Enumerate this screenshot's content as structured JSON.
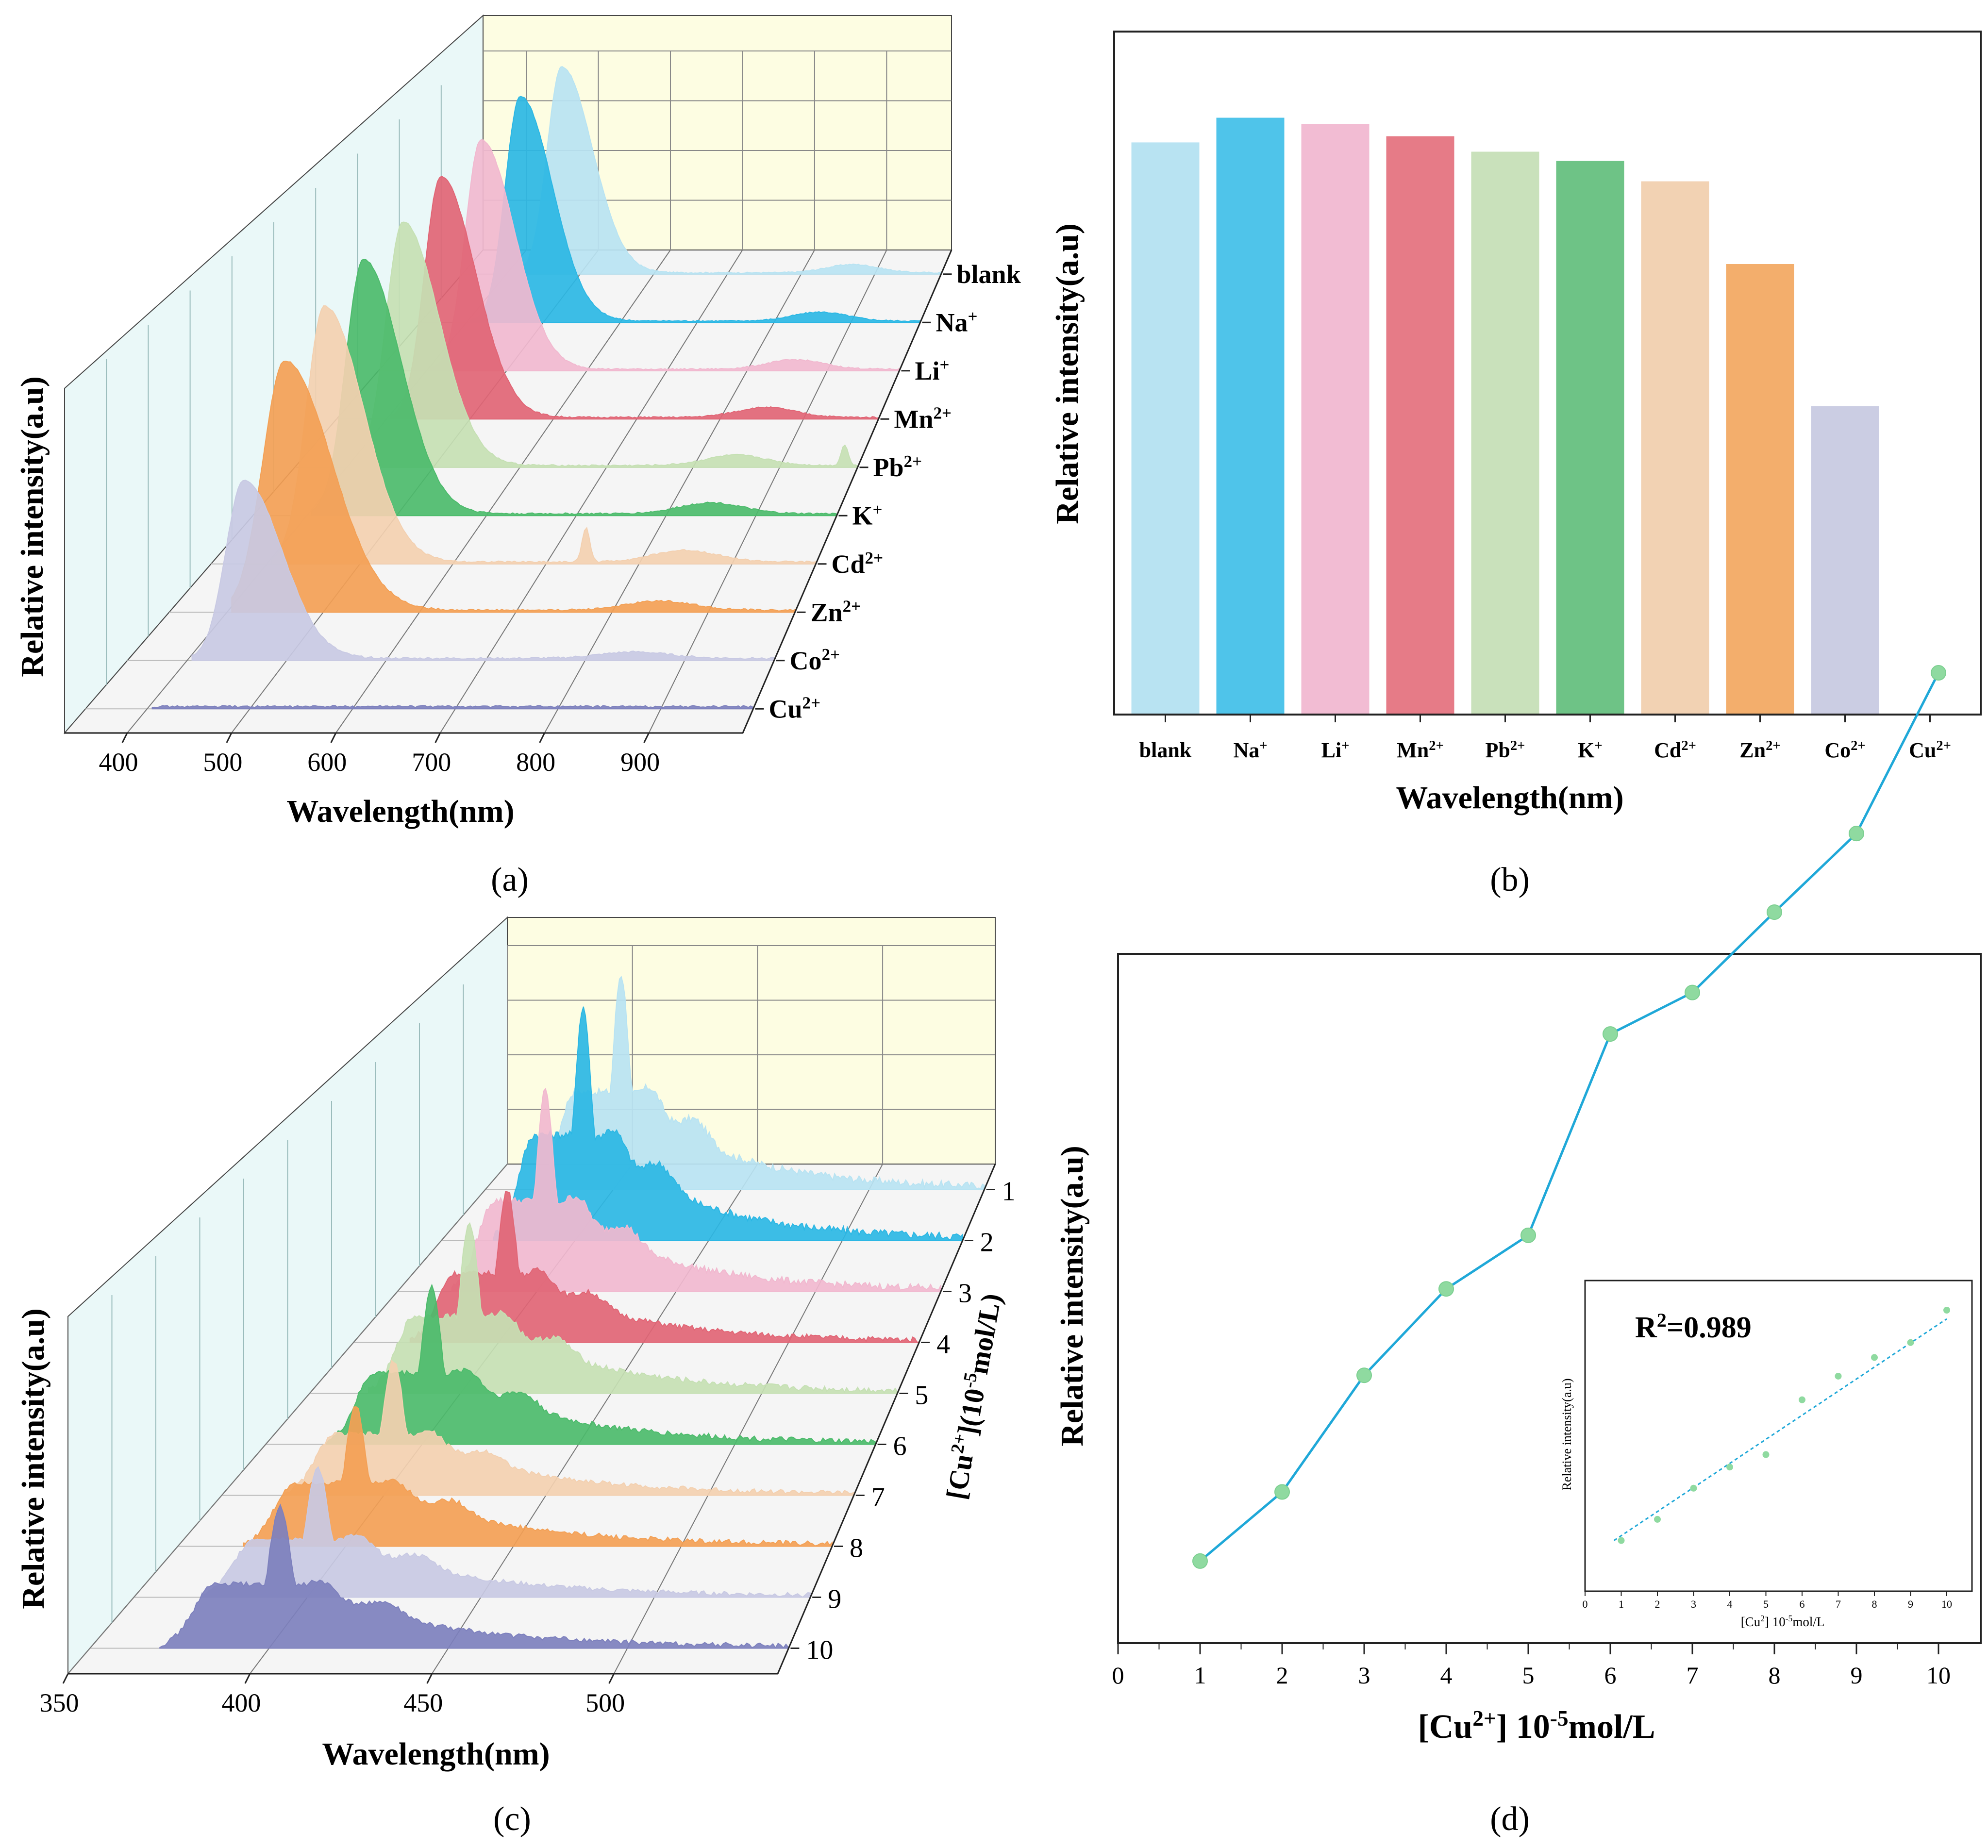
{
  "figure": {
    "panel_labels": [
      "(a)",
      "(b)",
      "(c)",
      "(d)"
    ]
  },
  "chart_data": [
    {
      "id": "a",
      "type": "area",
      "title": "",
      "xlabel": "Wavelength(nm)",
      "ylabel": "Relative intensity(a.u)",
      "xlim": [
        340,
        990
      ],
      "x_ticks": [
        "400",
        "500",
        "600",
        "700",
        "800",
        "900"
      ],
      "series": [
        {
          "name": "blank",
          "label_main": "blank",
          "label_sup": "",
          "color": "#b8e3f2",
          "peak_nm": 475,
          "peak": 1.0,
          "width": 26,
          "second_nm": 870,
          "second": 0.04,
          "spike_nm": 0,
          "spike": 0
        },
        {
          "name": "Na+",
          "label_main": "Na",
          "label_sup": "+",
          "color": "#2bb7e4",
          "peak_nm": 470,
          "peak": 1.02,
          "width": 26,
          "second_nm": 860,
          "second": 0.04,
          "spike_nm": 0,
          "spike": 0
        },
        {
          "name": "Li+",
          "label_main": "Li",
          "label_sup": "+",
          "color": "#f1b8cf",
          "peak_nm": 468,
          "peak": 0.98,
          "width": 26,
          "second_nm": 860,
          "second": 0.04,
          "spike_nm": 0,
          "spike": 0
        },
        {
          "name": "Mn2+",
          "label_main": "Mn",
          "label_sup": "2+",
          "color": "#e16575",
          "peak_nm": 465,
          "peak": 0.97,
          "width": 26,
          "second_nm": 855,
          "second": 0.04,
          "spike_nm": 0,
          "spike": 0
        },
        {
          "name": "Pb2+",
          "label_main": "Pb",
          "label_sup": "2+",
          "color": "#c5e0b3",
          "peak_nm": 465,
          "peak": 0.93,
          "width": 26,
          "second_nm": 850,
          "second": 0.04,
          "spike_nm": 975,
          "spike": 0.08
        },
        {
          "name": "K+",
          "label_main": "K",
          "label_sup": "+",
          "color": "#4cbb6b",
          "peak_nm": 463,
          "peak": 0.92,
          "width": 26,
          "second_nm": 850,
          "second": 0.04,
          "spike_nm": 0,
          "spike": 0
        },
        {
          "name": "Cd2+",
          "label_main": "Cd",
          "label_sup": "2+",
          "color": "#f3d0b0",
          "peak_nm": 462,
          "peak": 0.88,
          "width": 26,
          "second_nm": 850,
          "second": 0.04,
          "spike_nm": 743,
          "spike": 0.12
        },
        {
          "name": "Zn2+",
          "label_main": "Zn",
          "label_sup": "2+",
          "color": "#f3a055",
          "peak_nm": 460,
          "peak": 0.82,
          "width": 30,
          "second_nm": 850,
          "second": 0.03,
          "spike_nm": 0,
          "spike": 0
        },
        {
          "name": "Co2+",
          "label_main": "Co",
          "label_sup": "2+",
          "color": "#c8c9e3",
          "peak_nm": 457,
          "peak": 0.56,
          "width": 24,
          "second_nm": 850,
          "second": 0.02,
          "spike_nm": 0,
          "spike": 0
        },
        {
          "name": "Cu2+",
          "label_main": "Cu",
          "label_sup": "2+",
          "color": "#7d80bd",
          "peak_nm": 457,
          "peak": 0.0,
          "width": 24,
          "second_nm": 850,
          "second": 0.0,
          "spike_nm": 0,
          "spike": 0
        }
      ]
    },
    {
      "id": "b",
      "type": "bar",
      "title": "",
      "xlabel": "Wavelength(nm)",
      "ylabel": "Relative intensity(a.u)",
      "ylim": [
        0,
        1.0
      ],
      "categories": [
        {
          "main": "blank",
          "sup": ""
        },
        {
          "main": "Na",
          "sup": "+"
        },
        {
          "main": "Li",
          "sup": "+"
        },
        {
          "main": "Mn",
          "sup": "2+"
        },
        {
          "main": "Pb",
          "sup": "2+"
        },
        {
          "main": "K",
          "sup": "+"
        },
        {
          "main": "Cd",
          "sup": "2+"
        },
        {
          "main": "Zn",
          "sup": "2+"
        },
        {
          "main": "Co",
          "sup": "2+"
        },
        {
          "main": "Cu",
          "sup": "2+"
        }
      ],
      "values": [
        0.925,
        0.965,
        0.955,
        0.935,
        0.91,
        0.895,
        0.862,
        0.728,
        0.498,
        0.0
      ],
      "colors": [
        "#b8e3f2",
        "#4fc4ea",
        "#f2bcd3",
        "#e67b87",
        "#c9e1bb",
        "#6ec386",
        "#f2d2b3",
        "#f3ae6c",
        "#cbcde3",
        "#ffffff"
      ]
    },
    {
      "id": "c",
      "type": "area",
      "title": "",
      "xlabel": "Wavelength(nm)",
      "ylabel": "Relative intensity(a.u)",
      "zlabel_main": "[Cu",
      "zlabel_sup": "2+",
      "zlabel_rest": "](10",
      "zlabel_exp": "-5",
      "zlabel_end": "mol/L)",
      "xlim": [
        350,
        545
      ],
      "x_ticks": [
        "350",
        "400",
        "450",
        "500"
      ],
      "series": [
        {
          "name": "1",
          "color": "#b8e3f2",
          "peak_nm": 403,
          "peak": 0.95
        },
        {
          "name": "2",
          "color": "#2bb7e4",
          "peak_nm": 403,
          "peak": 0.98
        },
        {
          "name": "3",
          "color": "#f1b8cf",
          "peak_nm": 403,
          "peak": 0.8
        },
        {
          "name": "4",
          "color": "#e16575",
          "peak_nm": 403,
          "peak": 0.58
        },
        {
          "name": "5",
          "color": "#c5e0b3",
          "peak_nm": 403,
          "peak": 0.62
        },
        {
          "name": "6",
          "color": "#4cbb6b",
          "peak_nm": 403,
          "peak": 0.55
        },
        {
          "name": "7",
          "color": "#f3d0b0",
          "peak_nm": 403,
          "peak": 0.45
        },
        {
          "name": "8",
          "color": "#f3a055",
          "peak_nm": 403,
          "peak": 0.45
        },
        {
          "name": "9",
          "color": "#c8c9e3",
          "peak_nm": 403,
          "peak": 0.4
        },
        {
          "name": "10",
          "color": "#7d80bd",
          "peak_nm": 403,
          "peak": 0.42
        }
      ]
    },
    {
      "id": "d",
      "type": "line",
      "title": "",
      "xlabel_main": "[Cu",
      "xlabel_sup": "2+",
      "xlabel_rest": "] 10",
      "xlabel_exp": "-5",
      "xlabel_end": "mol/L",
      "ylabel": "Relative intensity(a.u)",
      "xlim": [
        0,
        10.5
      ],
      "ylim": [
        0,
        1.0
      ],
      "x_ticks": [
        "0",
        "1",
        "2",
        "3",
        "4",
        "5",
        "6",
        "7",
        "8",
        "9",
        "10"
      ],
      "x": [
        1,
        2,
        3,
        4,
        5,
        6,
        7,
        8,
        9,
        10
      ],
      "y": [
        0.095,
        0.175,
        0.31,
        0.41,
        0.472,
        0.705,
        0.753,
        0.846,
        0.937,
        1.123
      ],
      "line_color": "#1fa8d8",
      "marker_color": "#8fdaa0",
      "inset": {
        "annotation_main": "R",
        "annotation_sup": "2",
        "annotation_rest": "=0.989",
        "ylabel": "Relative intensity(a.u)",
        "xlabel_main": "[Cu",
        "xlabel_sup": "2",
        "xlabel_rest": "] 10",
        "xlabel_exp": "-5",
        "xlabel_end": "mol/L",
        "xlim": [
          0,
          10.5
        ],
        "ylim": [
          0,
          1.0
        ],
        "x_ticks": [
          "0",
          "1",
          "2",
          "3",
          "4",
          "5",
          "6",
          "7",
          "8",
          "9",
          "10"
        ],
        "x": [
          1,
          2,
          3,
          4,
          5,
          6,
          7,
          8,
          9,
          10
        ],
        "y": [
          0.075,
          0.16,
          0.285,
          0.37,
          0.42,
          0.64,
          0.735,
          0.81,
          0.87,
          1.0
        ],
        "fit": [
          0.075,
          0.965
        ]
      }
    }
  ]
}
